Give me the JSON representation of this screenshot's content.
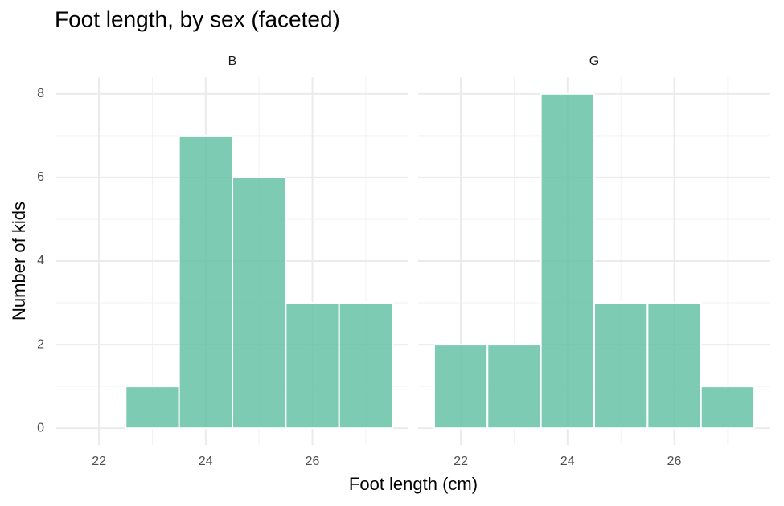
{
  "chart_data": {
    "type": "histogram",
    "title": "Foot length, by sex (faceted)",
    "x_label": "Foot length (cm)",
    "y_label": "Number of kids",
    "color": "#66c2a5",
    "facets": [
      {
        "name": "B",
        "bins": [
          21.5,
          22.5,
          23.5,
          24.5,
          25.5,
          26.5,
          27.5
        ],
        "counts": [
          0,
          1,
          7,
          6,
          3,
          3
        ]
      },
      {
        "name": "G",
        "bins": [
          21.5,
          22.5,
          23.5,
          24.5,
          25.5,
          26.5,
          27.5
        ],
        "counts": [
          2,
          2,
          8,
          3,
          3,
          1
        ]
      }
    ],
    "xlim": [
      21.2,
      27.8
    ],
    "ylim": [
      -0.4,
      8.4
    ],
    "xticks": [
      22,
      24,
      26
    ],
    "yticks": [
      0,
      2,
      4,
      6,
      8
    ],
    "xminor": [
      23,
      25,
      27
    ],
    "yminor": [
      1,
      3,
      5,
      7
    ],
    "grid": true
  }
}
